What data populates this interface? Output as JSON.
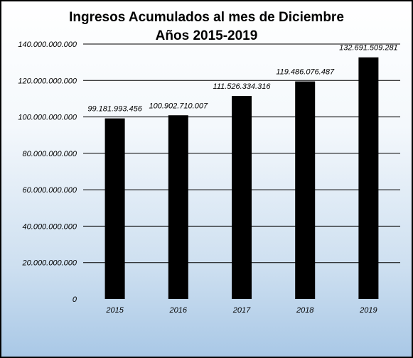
{
  "chart_data": {
    "type": "bar",
    "title": "Ingresos Acumulados  al mes de Diciembre",
    "subtitle": "Años 2015-2019",
    "xlabel": "",
    "ylabel": "",
    "categories": [
      "2015",
      "2016",
      "2017",
      "2018",
      "2019"
    ],
    "values": [
      99181993456,
      100902710007,
      111526334316,
      119486076487,
      132691509281
    ],
    "data_labels": [
      "99.181.993.456",
      "100.902.710.007",
      "111.526.334.316",
      "119.486.076.487",
      "132.691.509.281"
    ],
    "ylim": [
      0,
      140000000000
    ],
    "yticks": [
      0,
      20000000000,
      40000000000,
      60000000000,
      80000000000,
      100000000000,
      120000000000,
      140000000000
    ],
    "ytick_labels": [
      "0",
      "20.000.000.000",
      "40.000.000.000",
      "60.000.000.000",
      "80.000.000.000",
      "100.000.000.000",
      "120.000.000.000",
      "140.000.000.000"
    ],
    "grid": true,
    "legend": "none",
    "bar_color": "#000000",
    "background": "gradient white to light blue"
  }
}
